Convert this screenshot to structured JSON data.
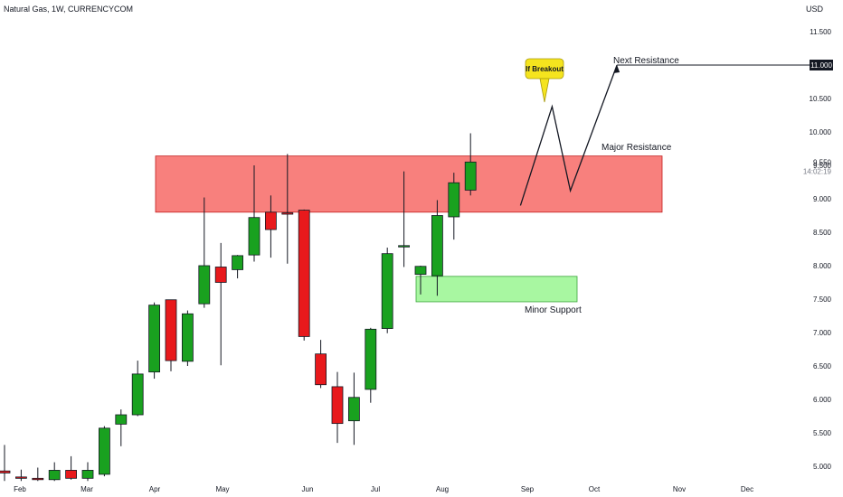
{
  "header": {
    "symbol": "Natural Gas, 1W, CURRENCYCOM",
    "currency": "USD"
  },
  "chart_data": {
    "type": "candlestick",
    "title": "Natural Gas, 1W, CURRENCYCOM",
    "y_axis_unit": "USD",
    "ylim": [
      4.8,
      11.8
    ],
    "y_ticks": [
      "5.000",
      "5.500",
      "6.000",
      "6.500",
      "7.000",
      "7.500",
      "8.000",
      "8.500",
      "9.000",
      "9.500",
      "10.000",
      "10.500",
      "11.000",
      "11.500"
    ],
    "x_labels": [
      "Feb",
      "Mar",
      "Apr",
      "May",
      "Jun",
      "Jul",
      "Aug",
      "Sep",
      "Oct",
      "Nov",
      "Dec"
    ],
    "candles": [
      {
        "o": 4.93,
        "h": 5.32,
        "l": 4.78,
        "c": 4.9
      },
      {
        "o": 4.84,
        "h": 4.95,
        "l": 4.78,
        "c": 4.82
      },
      {
        "o": 4.82,
        "h": 4.98,
        "l": 4.78,
        "c": 4.8
      },
      {
        "o": 4.8,
        "h": 5.06,
        "l": 4.78,
        "c": 4.94
      },
      {
        "o": 4.94,
        "h": 5.15,
        "l": 4.8,
        "c": 4.82
      },
      {
        "o": 4.82,
        "h": 5.06,
        "l": 4.78,
        "c": 4.94
      },
      {
        "o": 4.88,
        "h": 5.6,
        "l": 4.85,
        "c": 5.57
      },
      {
        "o": 5.63,
        "h": 5.85,
        "l": 5.3,
        "c": 5.77
      },
      {
        "o": 5.77,
        "h": 6.58,
        "l": 5.75,
        "c": 6.38
      },
      {
        "o": 6.41,
        "h": 7.45,
        "l": 6.31,
        "c": 7.41
      },
      {
        "o": 7.49,
        "h": 7.49,
        "l": 6.42,
        "c": 6.58
      },
      {
        "o": 6.57,
        "h": 7.33,
        "l": 6.5,
        "c": 7.28
      },
      {
        "o": 7.43,
        "h": 9.02,
        "l": 7.37,
        "c": 8.0
      },
      {
        "o": 7.98,
        "h": 8.34,
        "l": 6.51,
        "c": 7.75
      },
      {
        "o": 7.94,
        "h": 8.16,
        "l": 7.81,
        "c": 8.15
      },
      {
        "o": 8.16,
        "h": 9.5,
        "l": 8.06,
        "c": 8.72
      },
      {
        "o": 8.8,
        "h": 9.05,
        "l": 8.12,
        "c": 8.54
      },
      {
        "o": 8.79,
        "h": 9.67,
        "l": 8.03,
        "c": 8.77
      },
      {
        "o": 8.83,
        "h": 8.84,
        "l": 6.88,
        "c": 6.94
      },
      {
        "o": 6.68,
        "h": 6.89,
        "l": 6.17,
        "c": 6.22
      },
      {
        "o": 6.19,
        "h": 6.41,
        "l": 5.35,
        "c": 5.64
      },
      {
        "o": 5.68,
        "h": 6.4,
        "l": 5.32,
        "c": 6.03
      },
      {
        "o": 6.15,
        "h": 7.07,
        "l": 5.95,
        "c": 7.05
      },
      {
        "o": 7.06,
        "h": 8.27,
        "l": 6.99,
        "c": 8.18
      },
      {
        "o": 8.3,
        "h": 9.41,
        "l": 7.98,
        "c": 8.3
      },
      {
        "o": 7.87,
        "h": 8.0,
        "l": 7.57,
        "c": 7.99
      },
      {
        "o": 7.85,
        "h": 8.98,
        "l": 7.55,
        "c": 8.75
      },
      {
        "o": 8.73,
        "h": 9.39,
        "l": 8.39,
        "c": 9.24
      },
      {
        "o": 9.13,
        "h": 9.98,
        "l": 9.05,
        "c": 9.55
      }
    ],
    "zones": [
      {
        "name": "Major Resistance",
        "from": 8.8,
        "to": 9.64,
        "color": "#f8807d"
      },
      {
        "name": "Minor Support",
        "from": 7.46,
        "to": 7.84,
        "color": "#a8f7a1"
      }
    ],
    "annotations": {
      "major_resistance": "Major Resistance",
      "minor_support": "Minor Support",
      "next_resistance": "Next Resistance",
      "callout": "If Breakout"
    },
    "projection_path": [
      {
        "step": 0.0,
        "price": 8.9
      },
      {
        "step": 1.9,
        "price": 10.38
      },
      {
        "step": 3.0,
        "price": 9.12
      },
      {
        "step": 5.8,
        "price": 11.0
      }
    ],
    "price_label": "11.000",
    "last_price": "9.550",
    "countdown": "14:02:19",
    "colors": {
      "up": "#19a11f",
      "down": "#e8191c",
      "text": "#131722",
      "callout": "#f5e41e"
    }
  }
}
